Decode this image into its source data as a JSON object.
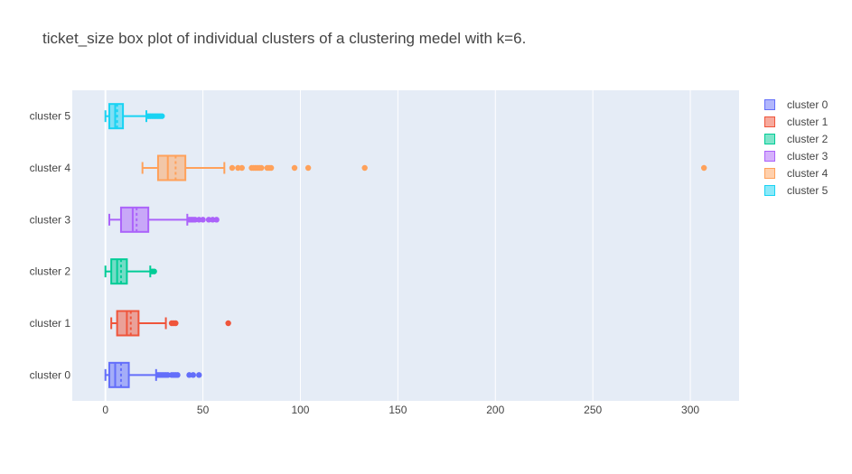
{
  "title": "ticket_size box plot of individual clusters of a clustering medel with k=6.",
  "chart_data": {
    "type": "box",
    "orientation": "horizontal",
    "title": "ticket_size box plot of individual clusters of a clustering medel with k=6.",
    "xlabel": "",
    "ylabel": "",
    "xlim": [
      -17,
      325
    ],
    "xticks": [
      0,
      50,
      100,
      150,
      200,
      250,
      300
    ],
    "grid": true,
    "legend_position": "top-right",
    "categories": [
      "cluster 0",
      "cluster 1",
      "cluster 2",
      "cluster 3",
      "cluster 4",
      "cluster 5"
    ],
    "series": [
      {
        "name": "cluster 0",
        "color": "#636efa",
        "min": 0,
        "q1": 2,
        "median": 5,
        "mean": 8,
        "q3": 12,
        "max": 26,
        "outliers": [
          27,
          28,
          29,
          30,
          31,
          32,
          34,
          35,
          36,
          37,
          43,
          45,
          48
        ]
      },
      {
        "name": "cluster 1",
        "color": "#ef553b",
        "min": 3,
        "q1": 6,
        "median": 11,
        "mean": 13,
        "q3": 17,
        "max": 31,
        "outliers": [
          34,
          35,
          36,
          63
        ]
      },
      {
        "name": "cluster 2",
        "color": "#00cc96",
        "min": 0,
        "q1": 3,
        "median": 6,
        "mean": 8,
        "q3": 11,
        "max": 23,
        "outliers": [
          24,
          25
        ]
      },
      {
        "name": "cluster 3",
        "color": "#ab63fa",
        "min": 2,
        "q1": 8,
        "median": 14,
        "mean": 16,
        "q3": 22,
        "max": 42,
        "outliers": [
          43,
          44,
          45,
          46,
          48,
          50,
          53,
          55,
          57
        ]
      },
      {
        "name": "cluster 4",
        "color": "#ffa15a",
        "min": 19,
        "q1": 27,
        "median": 32,
        "mean": 36,
        "q3": 41,
        "max": 61,
        "outliers": [
          65,
          68,
          70,
          75,
          76,
          77,
          78,
          79,
          80,
          83,
          84,
          85,
          97,
          104,
          133,
          307
        ]
      },
      {
        "name": "cluster 5",
        "color": "#19d3f3",
        "min": 0,
        "q1": 2,
        "median": 5,
        "mean": 6,
        "q3": 9,
        "max": 21,
        "outliers": [
          22,
          23,
          24,
          25,
          26,
          27,
          28,
          29
        ]
      }
    ]
  }
}
